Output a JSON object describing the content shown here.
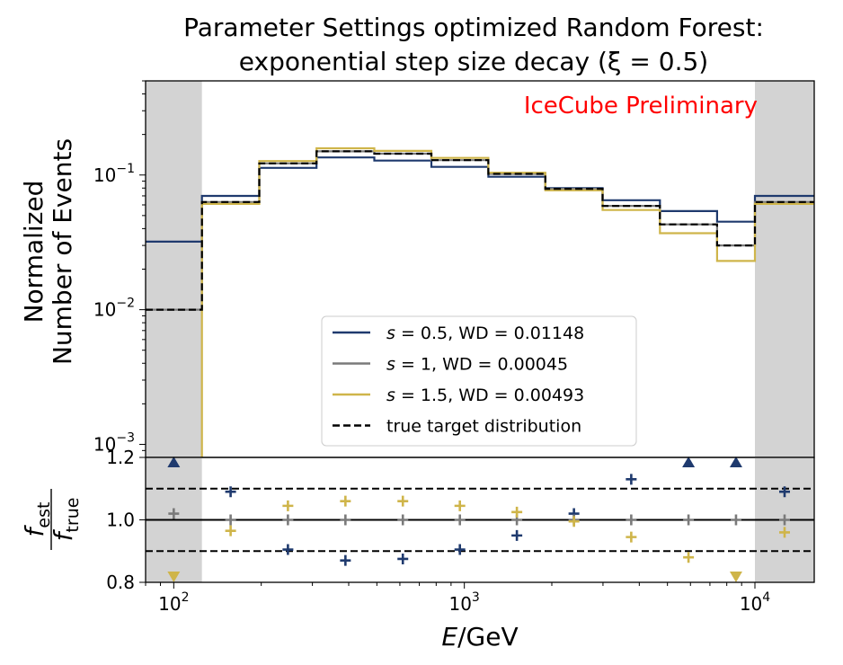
{
  "chart_data": {
    "type": "line",
    "title_line1": "Parameter Settings optimized Random Forest:",
    "title_line2": "exponential step size decay (ξ = 0.5)",
    "watermark": "IceCube Preliminary",
    "watermark_color": "#ff0000",
    "xlabel_italic": "E",
    "xlabel_unit": "/GeV",
    "ylabel_line1": "Normalized",
    "ylabel_line2": "Number of Events",
    "xscale": "log",
    "yscale": "log",
    "xlim": [
      80,
      16000
    ],
    "ylim": [
      0.0008,
      0.5
    ],
    "shaded_regions": [
      [
        80,
        125
      ],
      [
        10000,
        16000
      ]
    ],
    "shade_color": "#d3d3d3",
    "bin_edges": [
      80,
      125,
      197,
      310,
      490,
      770,
      1210,
      1900,
      2990,
      4710,
      7410,
      10000,
      16000
    ],
    "x_ticks": [
      {
        "base": "10",
        "exp": "2",
        "value": 100
      },
      {
        "base": "10",
        "exp": "3",
        "value": 1000
      },
      {
        "base": "10",
        "exp": "4",
        "value": 10000
      }
    ],
    "y_ticks": [
      {
        "base": "10",
        "exp": "−1",
        "value": 0.1
      },
      {
        "base": "10",
        "exp": "−2",
        "value": 0.01
      },
      {
        "base": "10",
        "exp": "−3",
        "value": 0.001
      }
    ],
    "series": [
      {
        "label": "s = 0.5, WD = 0.01148",
        "s": "0.5",
        "wd": "0.01148",
        "color": "#1f3a6e",
        "dash": "solid",
        "values": [
          0.032,
          0.07,
          0.113,
          0.135,
          0.128,
          0.115,
          0.097,
          0.08,
          0.065,
          0.054,
          0.045,
          0.07
        ]
      },
      {
        "label": "s = 1, WD = 0.00045",
        "s": "1",
        "wd": "0.00045",
        "color": "#7a7a7a",
        "dash": "solid",
        "values": [
          0.01,
          0.063,
          0.122,
          0.15,
          0.144,
          0.129,
          0.102,
          0.079,
          0.059,
          0.043,
          0.03,
          0.063
        ]
      },
      {
        "label": "s = 1.5, WD = 0.00493",
        "s": "1.5",
        "wd": "0.00493",
        "color": "#cfb54a",
        "dash": "solid",
        "values": [
          0.0001,
          0.061,
          0.127,
          0.158,
          0.151,
          0.134,
          0.104,
          0.077,
          0.055,
          0.037,
          0.023,
          0.061
        ]
      },
      {
        "label": "true target distribution",
        "color": "#000000",
        "dash": "dashed",
        "values": [
          0.01,
          0.063,
          0.122,
          0.15,
          0.144,
          0.129,
          0.102,
          0.079,
          0.059,
          0.043,
          0.03,
          0.063
        ]
      }
    ],
    "ratio_panel": {
      "ylabel_num": "f",
      "ylabel_num_sub": "est",
      "ylabel_den": "f",
      "ylabel_den_sub": "true",
      "ylim": [
        0.8,
        1.2
      ],
      "y_ticks": [
        "0.8",
        "1.0",
        "1.2"
      ],
      "y_tick_values": [
        0.8,
        1.0,
        1.2
      ],
      "ref_line": 1.0,
      "band_lines": [
        0.9,
        1.1
      ],
      "points": [
        {
          "series": 0,
          "values": [
            1.2,
            1.09,
            0.905,
            0.87,
            0.875,
            0.905,
            0.95,
            1.02,
            1.13,
            1.2,
            1.2,
            1.09
          ]
        },
        {
          "series": 1,
          "values": [
            1.02,
            1.0,
            1.0,
            1.0,
            1.0,
            1.0,
            1.0,
            1.0,
            1.0,
            1.0,
            1.0,
            1.0
          ]
        },
        {
          "series": 2,
          "values": [
            0.8,
            0.965,
            1.045,
            1.06,
            1.06,
            1.045,
            1.025,
            0.995,
            0.945,
            0.88,
            0.8,
            0.96
          ]
        }
      ]
    }
  }
}
